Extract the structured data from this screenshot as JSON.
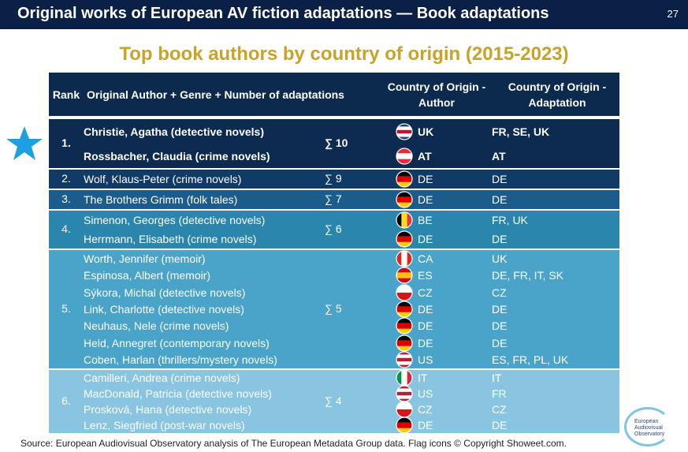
{
  "header": {
    "title": "Original works of European AV fiction adaptations — Book adaptations",
    "page": "27"
  },
  "subtitle": "Top book authors by country of origin (2015-2023)",
  "table": {
    "columns": [
      "Rank",
      "Original Author + Genre + Number of adaptations",
      "Country of Origin - Author",
      "Country of Origin - Adaptation"
    ],
    "groups": [
      {
        "rank": "1.",
        "count": "∑ 10",
        "color": "#0d2a50",
        "entries": [
          {
            "author": "Christie, Agatha (detective novels)",
            "country": "UK",
            "adaptation": "FR, SE, UK",
            "flag": {
              "dir": "h",
              "stripes": [
                "#1f3a8a",
                "#ffffff",
                "#c8102e",
                "#ffffff",
                "#1f3a8a"
              ]
            }
          },
          {
            "author": "Rossbacher, Claudia (crime novels)",
            "country": "AT",
            "adaptation": "AT",
            "flag": {
              "dir": "h",
              "stripes": [
                "#ed2939",
                "#ffffff",
                "#ed2939"
              ]
            }
          }
        ]
      },
      {
        "rank": "2.",
        "count": "∑ 9",
        "color": "#0f3b66",
        "entries": [
          {
            "author": "Wolf, Klaus-Peter (crime novels)",
            "country": "DE",
            "adaptation": "DE",
            "flag": {
              "dir": "h",
              "stripes": [
                "#000000",
                "#dd0000",
                "#ffce00"
              ]
            }
          }
        ]
      },
      {
        "rank": "3.",
        "count": "∑ 7",
        "color": "#1b5c8c",
        "entries": [
          {
            "author": "The Brothers Grimm (folk tales)",
            "country": "DE",
            "adaptation": "DE",
            "flag": {
              "dir": "h",
              "stripes": [
                "#000000",
                "#dd0000",
                "#ffce00"
              ]
            }
          }
        ]
      },
      {
        "rank": "4.",
        "count": "∑ 6",
        "color": "#2a86ac",
        "entries": [
          {
            "author": "Simenon, Georges (detective novels)",
            "country": "BE",
            "adaptation": "FR, UK",
            "flag": {
              "dir": "v",
              "stripes": [
                "#000000",
                "#fdda24",
                "#ef3340"
              ]
            }
          },
          {
            "author": "Herrmann, Elisabeth (crime novels)",
            "country": "DE",
            "adaptation": "DE",
            "flag": {
              "dir": "h",
              "stripes": [
                "#000000",
                "#dd0000",
                "#ffce00"
              ]
            }
          }
        ]
      },
      {
        "rank": "5.",
        "count": "∑ 5",
        "color": "#4aa3c8",
        "entries": [
          {
            "author": "Worth, Jennifer (memoir)",
            "country": "CA",
            "adaptation": "UK",
            "flag": {
              "dir": "v",
              "stripes": [
                "#d52b1e",
                "#ffffff",
                "#d52b1e"
              ]
            }
          },
          {
            "author": "Espinosa, Albert (memoir)",
            "country": "ES",
            "adaptation": "DE, FR, IT, SK",
            "flag": {
              "dir": "h",
              "stripes": [
                "#c60b1e",
                "#ffc400",
                "#c60b1e"
              ]
            }
          },
          {
            "author": "Sýkora, Michal (detective novels)",
            "country": "CZ",
            "adaptation": "CZ",
            "flag": {
              "dir": "h",
              "stripes": [
                "#ffffff",
                "#d7141a"
              ]
            }
          },
          {
            "author": "Link, Charlotte (detective novels)",
            "country": "DE",
            "adaptation": "DE",
            "flag": {
              "dir": "h",
              "stripes": [
                "#000000",
                "#dd0000",
                "#ffce00"
              ]
            }
          },
          {
            "author": "Neuhaus, Nele (crime novels)",
            "country": "DE",
            "adaptation": "DE",
            "flag": {
              "dir": "h",
              "stripes": [
                "#000000",
                "#dd0000",
                "#ffce00"
              ]
            }
          },
          {
            "author": "Held, Annegret (contemporary novels)",
            "country": "DE",
            "adaptation": "DE",
            "flag": {
              "dir": "h",
              "stripes": [
                "#000000",
                "#dd0000",
                "#ffce00"
              ]
            }
          },
          {
            "author": "Coben, Harlan (thrillers/mystery novels)",
            "country": "US",
            "adaptation": "ES, FR, PL, UK",
            "flag": {
              "dir": "h",
              "stripes": [
                "#b22234",
                "#ffffff",
                "#b22234",
                "#ffffff",
                "#b22234"
              ]
            }
          }
        ]
      },
      {
        "rank": "6.",
        "count": "∑ 4",
        "color": "#89c4e0",
        "entries": [
          {
            "author": "Camilleri, Andrea (crime novels)",
            "country": "IT",
            "adaptation": "IT",
            "flag": {
              "dir": "v",
              "stripes": [
                "#009246",
                "#ffffff",
                "#ce2b37"
              ]
            }
          },
          {
            "author": "MacDonald, Patricia (detective novels)",
            "country": "US",
            "adaptation": "FR",
            "flag": {
              "dir": "h",
              "stripes": [
                "#b22234",
                "#ffffff",
                "#b22234",
                "#ffffff",
                "#b22234"
              ]
            }
          },
          {
            "author": "Prosková, Hana (detective novels)",
            "country": "CZ",
            "adaptation": "CZ",
            "flag": {
              "dir": "h",
              "stripes": [
                "#ffffff",
                "#d7141a"
              ]
            }
          },
          {
            "author": "Lenz, Siegfried (post-war novels)",
            "country": "DE",
            "adaptation": "DE",
            "flag": {
              "dir": "h",
              "stripes": [
                "#000000",
                "#dd0000",
                "#ffce00"
              ]
            }
          }
        ]
      }
    ]
  },
  "source": "Source: European Audiovisual Observatory analysis of The European Metadata Group data. Flag icons © Copyright Showeet.com.",
  "logo": "European Audiovisual Observatory"
}
